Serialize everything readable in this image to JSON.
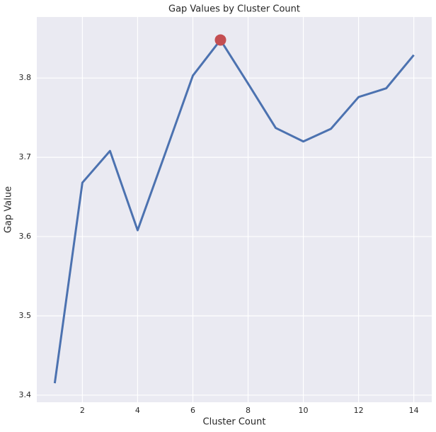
{
  "chart_data": {
    "type": "line",
    "title": "Gap Values by Cluster Count",
    "x_label": "Cluster Count",
    "y_label": "Gap Value",
    "x": [
      1,
      2,
      3,
      4,
      5,
      6,
      7,
      8,
      9,
      10,
      11,
      12,
      13,
      14
    ],
    "series": [
      {
        "color": "#4c72b0",
        "values": [
          3.415,
          3.668,
          3.708,
          3.608,
          3.705,
          3.803,
          3.848,
          3.793,
          3.737,
          3.72,
          3.736,
          3.776,
          3.787,
          3.829
        ]
      }
    ],
    "highlight": {
      "x": 7,
      "y": 3.848,
      "color": "#c44e52"
    },
    "xlim": [
      0.35,
      14.65
    ],
    "ylim": [
      3.391,
      3.877
    ],
    "xticks": [
      2,
      4,
      6,
      8,
      10,
      12,
      14
    ],
    "yticks": [
      3.4,
      3.5,
      3.6,
      3.7,
      3.8
    ],
    "grid": true
  }
}
